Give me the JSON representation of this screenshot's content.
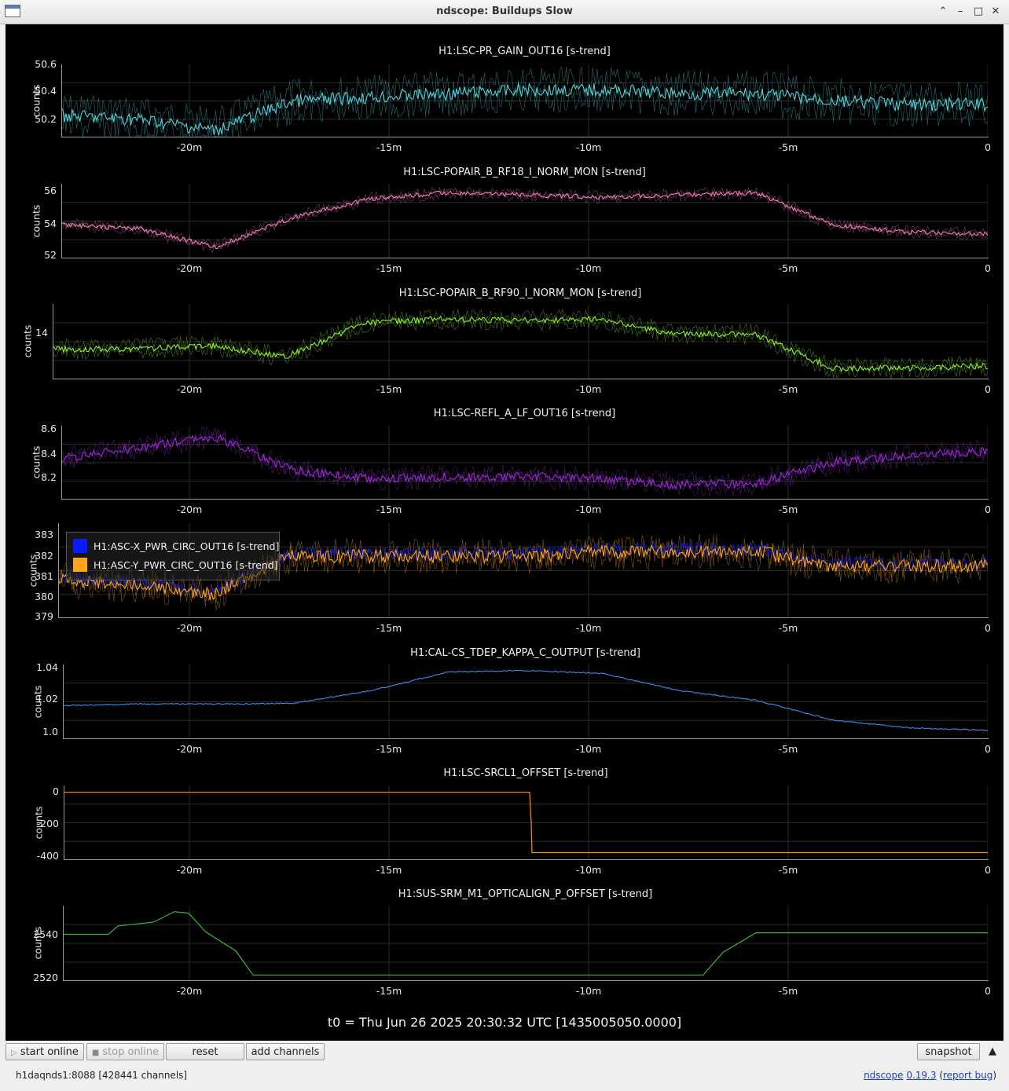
{
  "window": {
    "title": "ndscope: Buildups Slow"
  },
  "plots": [
    {
      "title": "H1:LSC-PR_GAIN_OUT16 [s-trend]",
      "ylabel": "counts",
      "yticks": [
        "50.6",
        "50.4",
        "50.2"
      ],
      "xticks": [
        "-20m",
        "-15m",
        "-10m",
        "-5m",
        "0"
      ],
      "color": "#4fd3d9"
    },
    {
      "title": "H1:LSC-POPAIR_B_RF18_I_NORM_MON [s-trend]",
      "ylabel": "counts",
      "yticks": [
        "56",
        "54",
        "52"
      ],
      "xticks": [
        "-20m",
        "-15m",
        "-10m",
        "-5m",
        "0"
      ],
      "color": "#f07ab8"
    },
    {
      "title": "H1:LSC-POPAIR_B_RF90_I_NORM_MON [s-trend]",
      "ylabel": "counts",
      "yticks": [
        "14"
      ],
      "xticks": [
        "-20m",
        "-15m",
        "-10m",
        "-5m",
        "0"
      ],
      "color": "#8cf02a"
    },
    {
      "title": "H1:LSC-REFL_A_LF_OUT16 [s-trend]",
      "ylabel": "counts",
      "yticks": [
        "8.6",
        "8.4",
        "8.2"
      ],
      "xticks": [
        "-20m",
        "-15m",
        "-10m",
        "-5m",
        "0"
      ],
      "color": "#9a2bd6"
    },
    {
      "title": "",
      "ylabel": "counts",
      "yticks": [
        "383",
        "382",
        "381",
        "380",
        "379"
      ],
      "xticks": [
        "-20m",
        "-15m",
        "-10m",
        "-5m",
        "0"
      ],
      "color": "#ffa41a"
    },
    {
      "title": "H1:CAL-CS_TDEP_KAPPA_C_OUTPUT [s-trend]",
      "ylabel": "counts",
      "yticks": [
        "1.04",
        "1.02",
        "1.0"
      ],
      "xticks": [
        "-20m",
        "-15m",
        "-10m",
        "-5m",
        "0"
      ],
      "color": "#3a8ef0"
    },
    {
      "title": "H1:LSC-SRCL1_OFFSET [s-trend]",
      "ylabel": "counts",
      "yticks": [
        "0",
        "-200",
        "-400"
      ],
      "xticks": [
        "-20m",
        "-15m",
        "-10m",
        "-5m",
        "0"
      ],
      "color": "#ff8c1a"
    },
    {
      "title": "H1:SUS-SRM_M1_OPTICALIGN_P_OFFSET [s-trend]",
      "ylabel": "counts",
      "yticks": [
        "2540",
        "2520"
      ],
      "xticks": [
        "-20m",
        "-15m",
        "-10m",
        "-5m",
        "0"
      ],
      "color": "#3fb33f"
    }
  ],
  "legend": {
    "items": [
      {
        "label": "H1:ASC-X_PWR_CIRC_OUT16 [s-trend]",
        "color": "#0a1cff"
      },
      {
        "label": "H1:ASC-Y_PWR_CIRC_OUT16 [s-trend]",
        "color": "#ffa41a"
      }
    ]
  },
  "t0_label": "t0 = Thu Jun 26 2025 20:30:32 UTC [1435005050.0000]",
  "toolbar": {
    "start_online": "start online",
    "stop_online": "stop online",
    "reset": "reset",
    "add_channels": "add channels",
    "snapshot": "snapshot"
  },
  "status": {
    "server": "h1daqnds1:8088",
    "channels": "[428441 channels]",
    "app_name": "ndscope",
    "version": "0.19.3",
    "report_bug": "report bug"
  }
}
